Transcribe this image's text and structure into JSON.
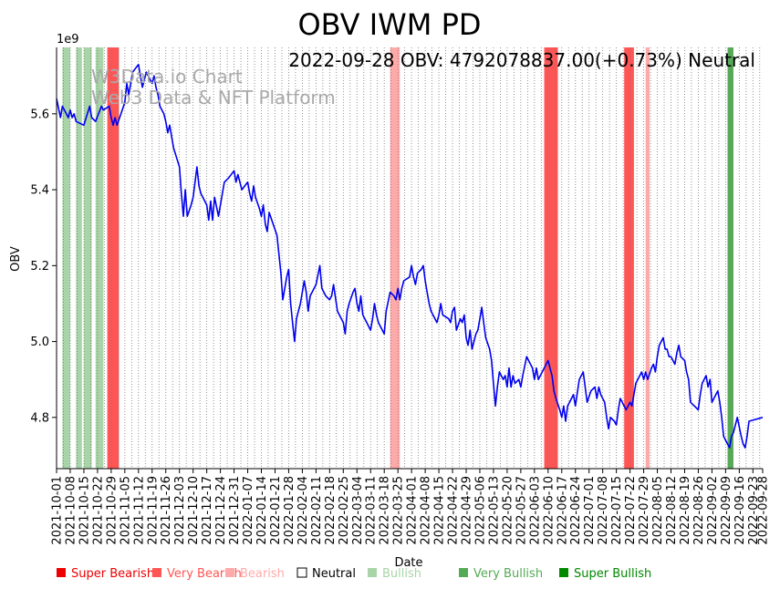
{
  "chart_data": {
    "type": "line",
    "title": "OBV IWM PD",
    "annotation": "2022-09-28 OBV: 4792078837.00(+0.73%) Neutral",
    "watermark": [
      "W3Data.io Chart",
      "Web3 Data & NFT Platform"
    ],
    "xlabel": "Date",
    "ylabel": "OBV",
    "y_multiplier_label": "1e9",
    "ylim": [
      4.665,
      5.775
    ],
    "y_ticks": [
      4.8,
      5.0,
      5.2,
      5.4,
      5.6
    ],
    "y_tick_labels": [
      "4.8",
      "5.0",
      "5.2",
      "5.4",
      "5.6"
    ],
    "x_range": [
      0,
      362
    ],
    "x_ticks": [
      0,
      7,
      14,
      21,
      28,
      35,
      42,
      49,
      56,
      63,
      70,
      77,
      84,
      91,
      98,
      105,
      112,
      119,
      126,
      133,
      140,
      147,
      154,
      161,
      168,
      175,
      182,
      189,
      196,
      203,
      210,
      217,
      224,
      231,
      238,
      245,
      252,
      259,
      266,
      273,
      280,
      287,
      294,
      301,
      308,
      315,
      322,
      329,
      336,
      343,
      350,
      357,
      362
    ],
    "x_tick_labels": [
      "2021-10-01",
      "2021-10-08",
      "2021-10-15",
      "2021-10-22",
      "2021-10-29",
      "2021-11-05",
      "2021-11-12",
      "2021-11-19",
      "2021-11-26",
      "2021-12-03",
      "2021-12-10",
      "2021-12-17",
      "2021-12-24",
      "2021-12-31",
      "2022-01-07",
      "2022-01-14",
      "2022-01-21",
      "2022-01-28",
      "2022-02-04",
      "2022-02-11",
      "2022-02-18",
      "2022-02-25",
      "2022-03-04",
      "2022-03-11",
      "2022-03-18",
      "2022-03-25",
      "2022-04-01",
      "2022-04-08",
      "2022-04-15",
      "2022-04-22",
      "2022-04-29",
      "2022-05-06",
      "2022-05-13",
      "2022-05-20",
      "2022-05-27",
      "2022-06-03",
      "2022-06-10",
      "2022-06-17",
      "2022-06-24",
      "2022-07-01",
      "2022-07-08",
      "2022-07-15",
      "2022-07-22",
      "2022-07-29",
      "2022-08-05",
      "2022-08-12",
      "2022-08-19",
      "2022-08-26",
      "2022-09-02",
      "2022-09-09",
      "2022-09-16",
      "2022-09-23",
      "2022-09-28"
    ],
    "series": [
      {
        "name": "OBV",
        "color": "#0000ee",
        "points": [
          [
            0,
            5.64
          ],
          [
            2,
            5.59
          ],
          [
            3,
            5.62
          ],
          [
            5,
            5.6
          ],
          [
            6,
            5.59
          ],
          [
            7,
            5.61
          ],
          [
            8,
            5.59
          ],
          [
            9,
            5.6
          ],
          [
            10,
            5.58
          ],
          [
            14,
            5.57
          ],
          [
            17,
            5.62
          ],
          [
            18,
            5.59
          ],
          [
            20,
            5.58
          ],
          [
            23,
            5.62
          ],
          [
            24,
            5.61
          ],
          [
            27,
            5.62
          ],
          [
            28,
            5.59
          ],
          [
            29,
            5.57
          ],
          [
            30,
            5.59
          ],
          [
            31,
            5.57
          ],
          [
            33,
            5.6
          ],
          [
            35,
            5.63
          ],
          [
            36,
            5.68
          ],
          [
            37,
            5.65
          ],
          [
            39,
            5.71
          ],
          [
            42,
            5.73
          ],
          [
            43,
            5.7
          ],
          [
            44,
            5.67
          ],
          [
            46,
            5.71
          ],
          [
            48,
            5.69
          ],
          [
            49,
            5.68
          ],
          [
            50,
            5.7
          ],
          [
            51,
            5.67
          ],
          [
            52,
            5.65
          ],
          [
            53,
            5.62
          ],
          [
            55,
            5.6
          ],
          [
            56,
            5.58
          ],
          [
            57,
            5.55
          ],
          [
            58,
            5.57
          ],
          [
            59,
            5.54
          ],
          [
            60,
            5.51
          ],
          [
            63,
            5.46
          ],
          [
            64,
            5.39
          ],
          [
            65,
            5.33
          ],
          [
            66,
            5.4
          ],
          [
            67,
            5.33
          ],
          [
            69,
            5.36
          ],
          [
            70,
            5.38
          ],
          [
            72,
            5.46
          ],
          [
            73,
            5.41
          ],
          [
            74,
            5.39
          ],
          [
            77,
            5.36
          ],
          [
            78,
            5.32
          ],
          [
            79,
            5.37
          ],
          [
            80,
            5.32
          ],
          [
            81,
            5.38
          ],
          [
            83,
            5.33
          ],
          [
            86,
            5.42
          ],
          [
            88,
            5.43
          ],
          [
            91,
            5.45
          ],
          [
            92,
            5.42
          ],
          [
            93,
            5.44
          ],
          [
            95,
            5.4
          ],
          [
            98,
            5.42
          ],
          [
            99,
            5.39
          ],
          [
            100,
            5.37
          ],
          [
            101,
            5.41
          ],
          [
            102,
            5.38
          ],
          [
            104,
            5.35
          ],
          [
            105,
            5.33
          ],
          [
            106,
            5.36
          ],
          [
            107,
            5.31
          ],
          [
            108,
            5.29
          ],
          [
            109,
            5.34
          ],
          [
            111,
            5.31
          ],
          [
            113,
            5.28
          ],
          [
            115,
            5.18
          ],
          [
            116,
            5.11
          ],
          [
            118,
            5.17
          ],
          [
            119,
            5.19
          ],
          [
            120,
            5.1
          ],
          [
            121,
            5.05
          ],
          [
            122,
            5.0
          ],
          [
            123,
            5.06
          ],
          [
            124,
            5.08
          ],
          [
            125,
            5.1
          ],
          [
            127,
            5.16
          ],
          [
            128,
            5.13
          ],
          [
            129,
            5.08
          ],
          [
            130,
            5.12
          ],
          [
            133,
            5.15
          ],
          [
            135,
            5.2
          ],
          [
            136,
            5.14
          ],
          [
            138,
            5.12
          ],
          [
            140,
            5.11
          ],
          [
            141,
            5.12
          ],
          [
            142,
            5.15
          ],
          [
            144,
            5.08
          ],
          [
            147,
            5.05
          ],
          [
            148,
            5.02
          ],
          [
            149,
            5.08
          ],
          [
            150,
            5.1
          ],
          [
            152,
            5.13
          ],
          [
            153,
            5.14
          ],
          [
            154,
            5.1
          ],
          [
            155,
            5.08
          ],
          [
            156,
            5.12
          ],
          [
            157,
            5.07
          ],
          [
            159,
            5.05
          ],
          [
            161,
            5.03
          ],
          [
            162,
            5.06
          ],
          [
            163,
            5.1
          ],
          [
            164,
            5.07
          ],
          [
            165,
            5.05
          ],
          [
            167,
            5.03
          ],
          [
            168,
            5.02
          ],
          [
            169,
            5.08
          ],
          [
            171,
            5.13
          ],
          [
            173,
            5.12
          ],
          [
            174,
            5.11
          ],
          [
            175,
            5.14
          ],
          [
            176,
            5.11
          ],
          [
            177,
            5.14
          ],
          [
            178,
            5.16
          ],
          [
            181,
            5.17
          ],
          [
            182,
            5.2
          ],
          [
            183,
            5.17
          ],
          [
            184,
            5.15
          ],
          [
            185,
            5.18
          ],
          [
            187,
            5.19
          ],
          [
            188,
            5.2
          ],
          [
            189,
            5.16
          ],
          [
            190,
            5.13
          ],
          [
            191,
            5.1
          ],
          [
            192,
            5.08
          ],
          [
            195,
            5.05
          ],
          [
            196,
            5.07
          ],
          [
            197,
            5.1
          ],
          [
            198,
            5.07
          ],
          [
            201,
            5.06
          ],
          [
            202,
            5.05
          ],
          [
            203,
            5.08
          ],
          [
            204,
            5.09
          ],
          [
            205,
            5.03
          ],
          [
            207,
            5.06
          ],
          [
            208,
            5.05
          ],
          [
            209,
            5.07
          ],
          [
            210,
            5.01
          ],
          [
            211,
            4.99
          ],
          [
            212,
            5.03
          ],
          [
            213,
            4.98
          ],
          [
            215,
            5.02
          ],
          [
            216,
            5.03
          ],
          [
            217,
            5.06
          ],
          [
            218,
            5.09
          ],
          [
            219,
            5.05
          ],
          [
            220,
            5.01
          ],
          [
            222,
            4.98
          ],
          [
            223,
            4.95
          ],
          [
            224,
            4.89
          ],
          [
            225,
            4.83
          ],
          [
            226,
            4.88
          ],
          [
            227,
            4.92
          ],
          [
            229,
            4.9
          ],
          [
            230,
            4.91
          ],
          [
            231,
            4.88
          ],
          [
            232,
            4.93
          ],
          [
            233,
            4.88
          ],
          [
            234,
            4.91
          ],
          [
            235,
            4.89
          ],
          [
            237,
            4.9
          ],
          [
            238,
            4.88
          ],
          [
            239,
            4.91
          ],
          [
            241,
            4.96
          ],
          [
            242,
            4.95
          ],
          [
            244,
            4.93
          ],
          [
            245,
            4.9
          ],
          [
            246,
            4.93
          ],
          [
            247,
            4.9
          ],
          [
            249,
            4.92
          ],
          [
            251,
            4.94
          ],
          [
            252,
            4.95
          ],
          [
            253,
            4.93
          ],
          [
            254,
            4.91
          ],
          [
            255,
            4.87
          ],
          [
            256,
            4.85
          ],
          [
            258,
            4.82
          ],
          [
            259,
            4.8
          ],
          [
            260,
            4.83
          ],
          [
            261,
            4.79
          ],
          [
            262,
            4.83
          ],
          [
            263,
            4.84
          ],
          [
            265,
            4.86
          ],
          [
            266,
            4.83
          ],
          [
            268,
            4.9
          ],
          [
            270,
            4.92
          ],
          [
            272,
            4.84
          ],
          [
            274,
            4.87
          ],
          [
            276,
            4.88
          ],
          [
            277,
            4.85
          ],
          [
            278,
            4.88
          ],
          [
            279,
            4.86
          ],
          [
            281,
            4.84
          ],
          [
            282,
            4.8
          ],
          [
            283,
            4.77
          ],
          [
            284,
            4.8
          ],
          [
            286,
            4.79
          ],
          [
            287,
            4.78
          ],
          [
            288,
            4.82
          ],
          [
            289,
            4.85
          ],
          [
            291,
            4.83
          ],
          [
            292,
            4.82
          ],
          [
            294,
            4.84
          ],
          [
            295,
            4.83
          ],
          [
            297,
            4.89
          ],
          [
            299,
            4.91
          ],
          [
            300,
            4.92
          ],
          [
            301,
            4.9
          ],
          [
            302,
            4.92
          ],
          [
            303,
            4.9
          ],
          [
            305,
            4.93
          ],
          [
            306,
            4.94
          ],
          [
            307,
            4.92
          ],
          [
            308,
            4.96
          ],
          [
            309,
            4.99
          ],
          [
            311,
            5.01
          ],
          [
            312,
            4.98
          ],
          [
            313,
            4.98
          ],
          [
            314,
            4.96
          ],
          [
            315,
            4.96
          ],
          [
            317,
            4.94
          ],
          [
            318,
            4.97
          ],
          [
            319,
            4.99
          ],
          [
            320,
            4.96
          ],
          [
            322,
            4.95
          ],
          [
            323,
            4.92
          ],
          [
            324,
            4.9
          ],
          [
            325,
            4.84
          ],
          [
            327,
            4.83
          ],
          [
            329,
            4.82
          ],
          [
            330,
            4.86
          ],
          [
            331,
            4.89
          ],
          [
            333,
            4.91
          ],
          [
            334,
            4.88
          ],
          [
            335,
            4.9
          ],
          [
            336,
            4.84
          ],
          [
            338,
            4.86
          ],
          [
            339,
            4.87
          ],
          [
            340,
            4.84
          ],
          [
            341,
            4.8
          ],
          [
            342,
            4.75
          ],
          [
            345,
            4.72
          ],
          [
            346,
            4.75
          ],
          [
            347,
            4.76
          ],
          [
            348,
            4.78
          ],
          [
            349,
            4.8
          ],
          [
            351,
            4.75
          ],
          [
            352,
            4.73
          ],
          [
            353,
            4.72
          ],
          [
            354,
            4.75
          ],
          [
            355,
            4.79
          ],
          [
            362,
            4.8
          ]
        ]
      }
    ],
    "shaded_regions": [
      {
        "start": 3,
        "end": 7,
        "category": "Bullish"
      },
      {
        "start": 10,
        "end": 13,
        "category": "Bullish"
      },
      {
        "start": 14,
        "end": 18,
        "category": "Bullish"
      },
      {
        "start": 20,
        "end": 24,
        "category": "Bullish"
      },
      {
        "start": 26,
        "end": 32,
        "category": "Very Bearish"
      },
      {
        "start": 171,
        "end": 176,
        "category": "Bearish"
      },
      {
        "start": 250,
        "end": 257,
        "category": "Very Bearish"
      },
      {
        "start": 291,
        "end": 296,
        "category": "Very Bearish"
      },
      {
        "start": 302,
        "end": 304,
        "category": "Bearish"
      },
      {
        "start": 344,
        "end": 347,
        "category": "Very Bullish"
      }
    ],
    "legend": [
      {
        "label": "Super Bearish",
        "color": "#ee0000"
      },
      {
        "label": "Very Bearish",
        "color": "#ff5555"
      },
      {
        "label": "Bearish",
        "color": "#ffaaaa"
      },
      {
        "label": "Neutral",
        "color": "#000000"
      },
      {
        "label": "Bullish",
        "color": "#a8d4a8"
      },
      {
        "label": "Very Bullish",
        "color": "#55aa55"
      },
      {
        "label": "Super Bullish",
        "color": "#008800"
      }
    ],
    "legend_placement": "bottom",
    "grid": "vertical-dotted"
  }
}
